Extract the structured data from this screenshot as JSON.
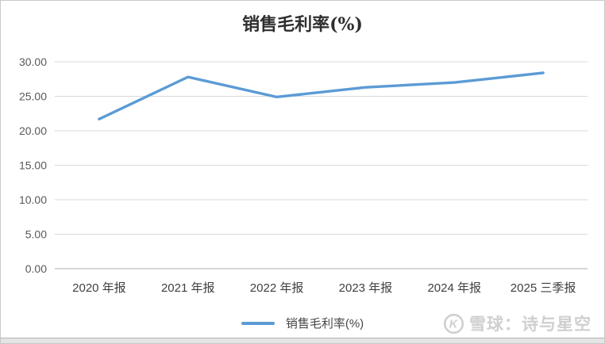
{
  "chart_data": {
    "type": "line",
    "title": "销售毛利率(%)",
    "categories": [
      "2020 年报",
      "2021 年报",
      "2022 年报",
      "2023 年报",
      "2024 年报",
      "2025 三季报"
    ],
    "series": [
      {
        "name": "销售毛利率(%)",
        "values": [
          21.7,
          27.8,
          24.9,
          26.3,
          27.0,
          28.4
        ],
        "color": "#5B9BD5"
      }
    ],
    "xlabel": "",
    "ylabel": "",
    "ylim": [
      0,
      30
    ],
    "y_ticks": [
      "0.00",
      "5.00",
      "10.00",
      "15.00",
      "20.00",
      "25.00",
      "30.00"
    ],
    "grid": "horizontal",
    "legend_position": "bottom"
  },
  "legend": {
    "label": "销售毛利率(%)"
  },
  "watermark": {
    "icon": "xueqiu-logo",
    "icon_letter": "K",
    "text": "雪球：诗与星空",
    "color": "#cfcfcf"
  },
  "colors": {
    "line": "#5B9BD5",
    "gridline": "#d9d9d9",
    "axis": "#bdbdbd",
    "title_text": "#2f2f2f",
    "tick_text": "#595959"
  }
}
